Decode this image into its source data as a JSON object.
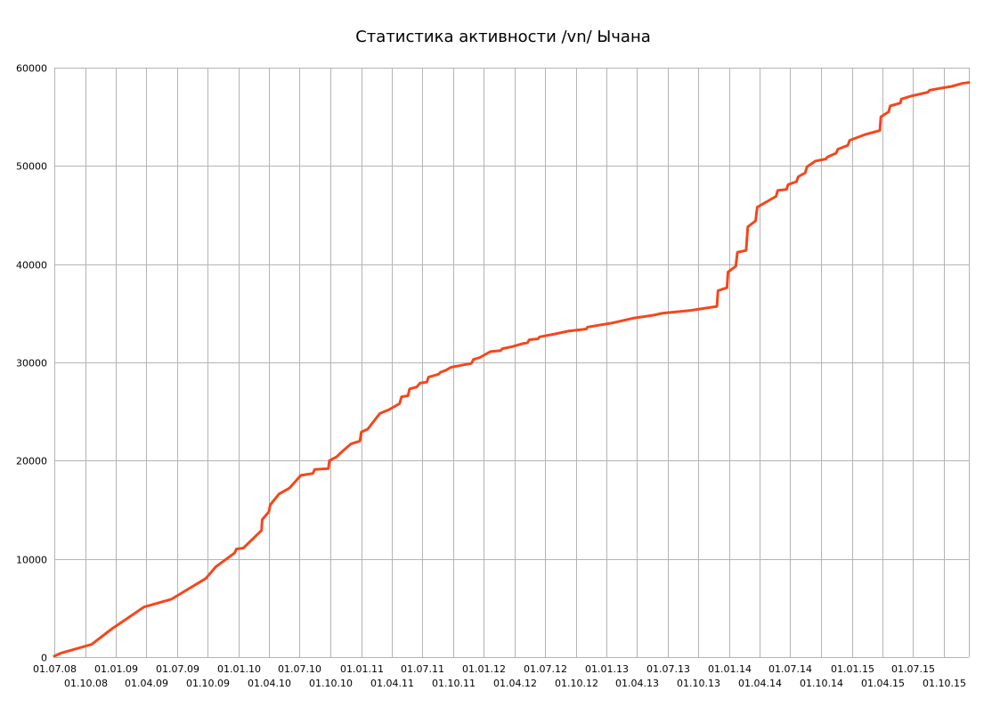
{
  "chart_data": {
    "type": "line",
    "title": "Статистика активности /vn/ Ычана",
    "xlabel": "",
    "ylabel": "",
    "grid": true,
    "legend": "none",
    "colors": {
      "line": "#f4471c",
      "grid": "#b4b4b4",
      "text": "#000000"
    },
    "x_axis": {
      "start": "2008-07-01",
      "end": "2015-12-15",
      "tick_labels": [
        "01.07.08",
        "01.10.08",
        "01.01.09",
        "01.04.09",
        "01.07.09",
        "01.10.09",
        "01.01.10",
        "01.04.10",
        "01.07.10",
        "01.10.10",
        "01.01.11",
        "01.04.11",
        "01.07.11",
        "01.10.11",
        "01.01.12",
        "01.04.12",
        "01.07.12",
        "01.10.12",
        "01.01.13",
        "01.04.13",
        "01.07.13",
        "01.10.13",
        "01.01.14",
        "01.04.14",
        "01.07.14",
        "01.10.14",
        "01.01.15",
        "01.04.15",
        "01.07.15",
        "01.10.15"
      ]
    },
    "y_axis": {
      "min": 0,
      "max": 60000,
      "ticks": [
        0,
        10000,
        20000,
        30000,
        40000,
        50000,
        60000
      ],
      "tick_labels": [
        "0",
        "10000",
        "20000",
        "30000",
        "40000",
        "50000",
        "60000"
      ]
    },
    "series": [
      {
        "points": [
          [
            "2008-07-01",
            100
          ],
          [
            "2008-07-20",
            400
          ],
          [
            "2008-10-20",
            1300
          ],
          [
            "2008-12-20",
            2900
          ],
          [
            "2009-02-10",
            4100
          ],
          [
            "2009-03-25",
            5100
          ],
          [
            "2009-06-15",
            5900
          ],
          [
            "2009-09-25",
            8000
          ],
          [
            "2009-10-25",
            9200
          ],
          [
            "2009-12-20",
            10600
          ],
          [
            "2009-12-25",
            11000
          ],
          [
            "2010-01-15",
            11100
          ],
          [
            "2010-03-10",
            12900
          ],
          [
            "2010-03-12",
            14000
          ],
          [
            "2010-04-01",
            14800
          ],
          [
            "2010-04-05",
            15500
          ],
          [
            "2010-05-01",
            16600
          ],
          [
            "2010-06-01",
            17200
          ],
          [
            "2010-07-05",
            18500
          ],
          [
            "2010-08-10",
            18700
          ],
          [
            "2010-08-15",
            19100
          ],
          [
            "2010-09-25",
            19200
          ],
          [
            "2010-09-28",
            20000
          ],
          [
            "2010-10-20",
            20400
          ],
          [
            "2010-11-01",
            20800
          ],
          [
            "2010-12-01",
            21700
          ],
          [
            "2010-12-28",
            22000
          ],
          [
            "2011-01-01",
            22900
          ],
          [
            "2011-01-20",
            23200
          ],
          [
            "2011-02-25",
            24800
          ],
          [
            "2011-03-25",
            25200
          ],
          [
            "2011-04-25",
            25800
          ],
          [
            "2011-05-01",
            26500
          ],
          [
            "2011-05-20",
            26600
          ],
          [
            "2011-05-25",
            27300
          ],
          [
            "2011-06-15",
            27500
          ],
          [
            "2011-06-25",
            27900
          ],
          [
            "2011-07-15",
            28000
          ],
          [
            "2011-07-20",
            28500
          ],
          [
            "2011-08-20",
            28800
          ],
          [
            "2011-08-25",
            29000
          ],
          [
            "2011-09-10",
            29200
          ],
          [
            "2011-09-25",
            29500
          ],
          [
            "2011-10-25",
            29700
          ],
          [
            "2011-11-25",
            29900
          ],
          [
            "2011-12-01",
            30300
          ],
          [
            "2011-12-20",
            30500
          ],
          [
            "2012-01-20",
            31100
          ],
          [
            "2012-02-20",
            31200
          ],
          [
            "2012-02-25",
            31400
          ],
          [
            "2012-03-25",
            31600
          ],
          [
            "2012-04-15",
            31800
          ],
          [
            "2012-04-25",
            31900
          ],
          [
            "2012-05-10",
            32000
          ],
          [
            "2012-05-15",
            32300
          ],
          [
            "2012-06-10",
            32400
          ],
          [
            "2012-06-15",
            32600
          ],
          [
            "2012-08-01",
            32900
          ],
          [
            "2012-09-10",
            33200
          ],
          [
            "2012-11-01",
            33400
          ],
          [
            "2012-11-05",
            33600
          ],
          [
            "2013-01-15",
            34000
          ],
          [
            "2013-03-20",
            34500
          ],
          [
            "2013-05-20",
            34800
          ],
          [
            "2013-06-15",
            35000
          ],
          [
            "2013-09-10",
            35300
          ],
          [
            "2013-11-25",
            35700
          ],
          [
            "2013-11-28",
            37300
          ],
          [
            "2013-12-25",
            37600
          ],
          [
            "2013-12-28",
            39200
          ],
          [
            "2014-01-20",
            39800
          ],
          [
            "2014-01-25",
            41200
          ],
          [
            "2014-02-20",
            41400
          ],
          [
            "2014-02-25",
            43800
          ],
          [
            "2014-03-20",
            44400
          ],
          [
            "2014-03-25",
            45800
          ],
          [
            "2014-05-20",
            46900
          ],
          [
            "2014-05-25",
            47500
          ],
          [
            "2014-06-20",
            47600
          ],
          [
            "2014-06-25",
            48100
          ],
          [
            "2014-07-20",
            48400
          ],
          [
            "2014-07-25",
            48900
          ],
          [
            "2014-08-15",
            49300
          ],
          [
            "2014-08-20",
            49900
          ],
          [
            "2014-09-15",
            50500
          ],
          [
            "2014-10-15",
            50700
          ],
          [
            "2014-10-20",
            50900
          ],
          [
            "2014-11-15",
            51300
          ],
          [
            "2014-11-20",
            51700
          ],
          [
            "2014-12-20",
            52100
          ],
          [
            "2014-12-25",
            52600
          ],
          [
            "2015-02-10",
            53200
          ],
          [
            "2015-03-25",
            53600
          ],
          [
            "2015-03-28",
            55000
          ],
          [
            "2015-04-20",
            55500
          ],
          [
            "2015-04-25",
            56100
          ],
          [
            "2015-05-25",
            56400
          ],
          [
            "2015-05-28",
            56800
          ],
          [
            "2015-06-25",
            57100
          ],
          [
            "2015-07-20",
            57300
          ],
          [
            "2015-08-15",
            57500
          ],
          [
            "2015-08-20",
            57700
          ],
          [
            "2015-09-20",
            57900
          ],
          [
            "2015-10-25",
            58100
          ],
          [
            "2015-11-25",
            58400
          ],
          [
            "2015-12-15",
            58500
          ]
        ]
      }
    ]
  }
}
